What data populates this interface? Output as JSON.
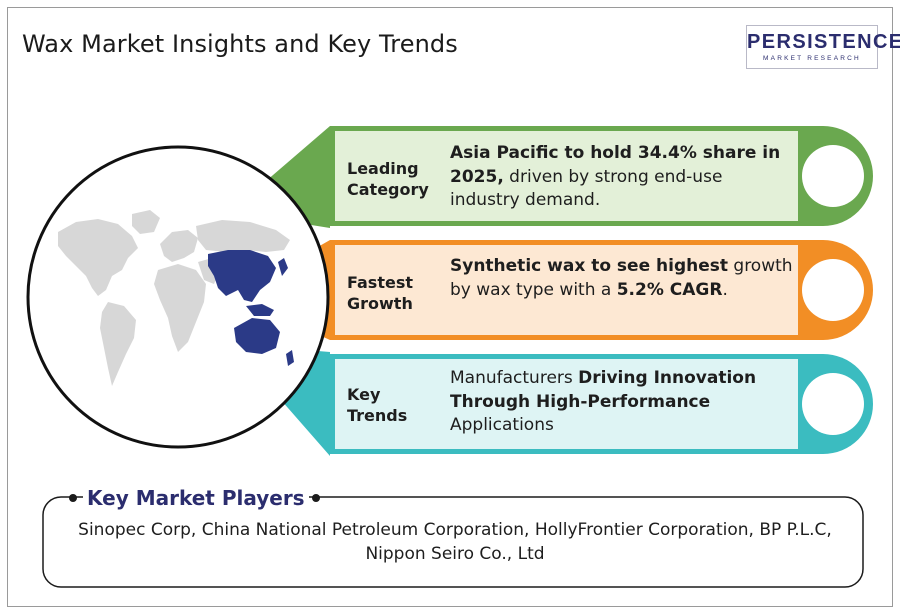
{
  "title": "Wax Market Insights and Key Trends",
  "logo": {
    "word": "PERSISTENCE",
    "subtitle": "MARKET RESEARCH"
  },
  "colors": {
    "green": "#6aa84f",
    "green_fill": "#e3f0d8",
    "orange": "#f28e25",
    "orange_fill": "#fde8d3",
    "teal": "#3bbcc0",
    "teal_fill": "#def4f4",
    "highlight_region": "#2b3a87",
    "land": "#d7d7d7",
    "brand": "#2b2d6e"
  },
  "insights": [
    {
      "category_line1": "Leading",
      "category_line2": "Category",
      "bold": "Asia Pacific to hold 34.4% share in 2025,",
      "text": " driven by strong end-use industry demand."
    },
    {
      "category_line1": "Fastest",
      "category_line2": "Growth",
      "bold": "Synthetic wax to see highest",
      "text": " growth by wax type with a ",
      "bold2": "5.2% CAGR",
      "text2": "."
    },
    {
      "category_line1": "Key",
      "category_line2": "Trends",
      "text": "Manufacturers ",
      "bold": "Driving Innovation Through High-Performance",
      "text2": " Applications"
    }
  ],
  "players": {
    "title": "Key Market Players",
    "list": "Sinopec Corp, China National Petroleum Corporation, HollyFrontier Corporation, BP P.L.C, Nippon Seiro Co., Ltd"
  }
}
